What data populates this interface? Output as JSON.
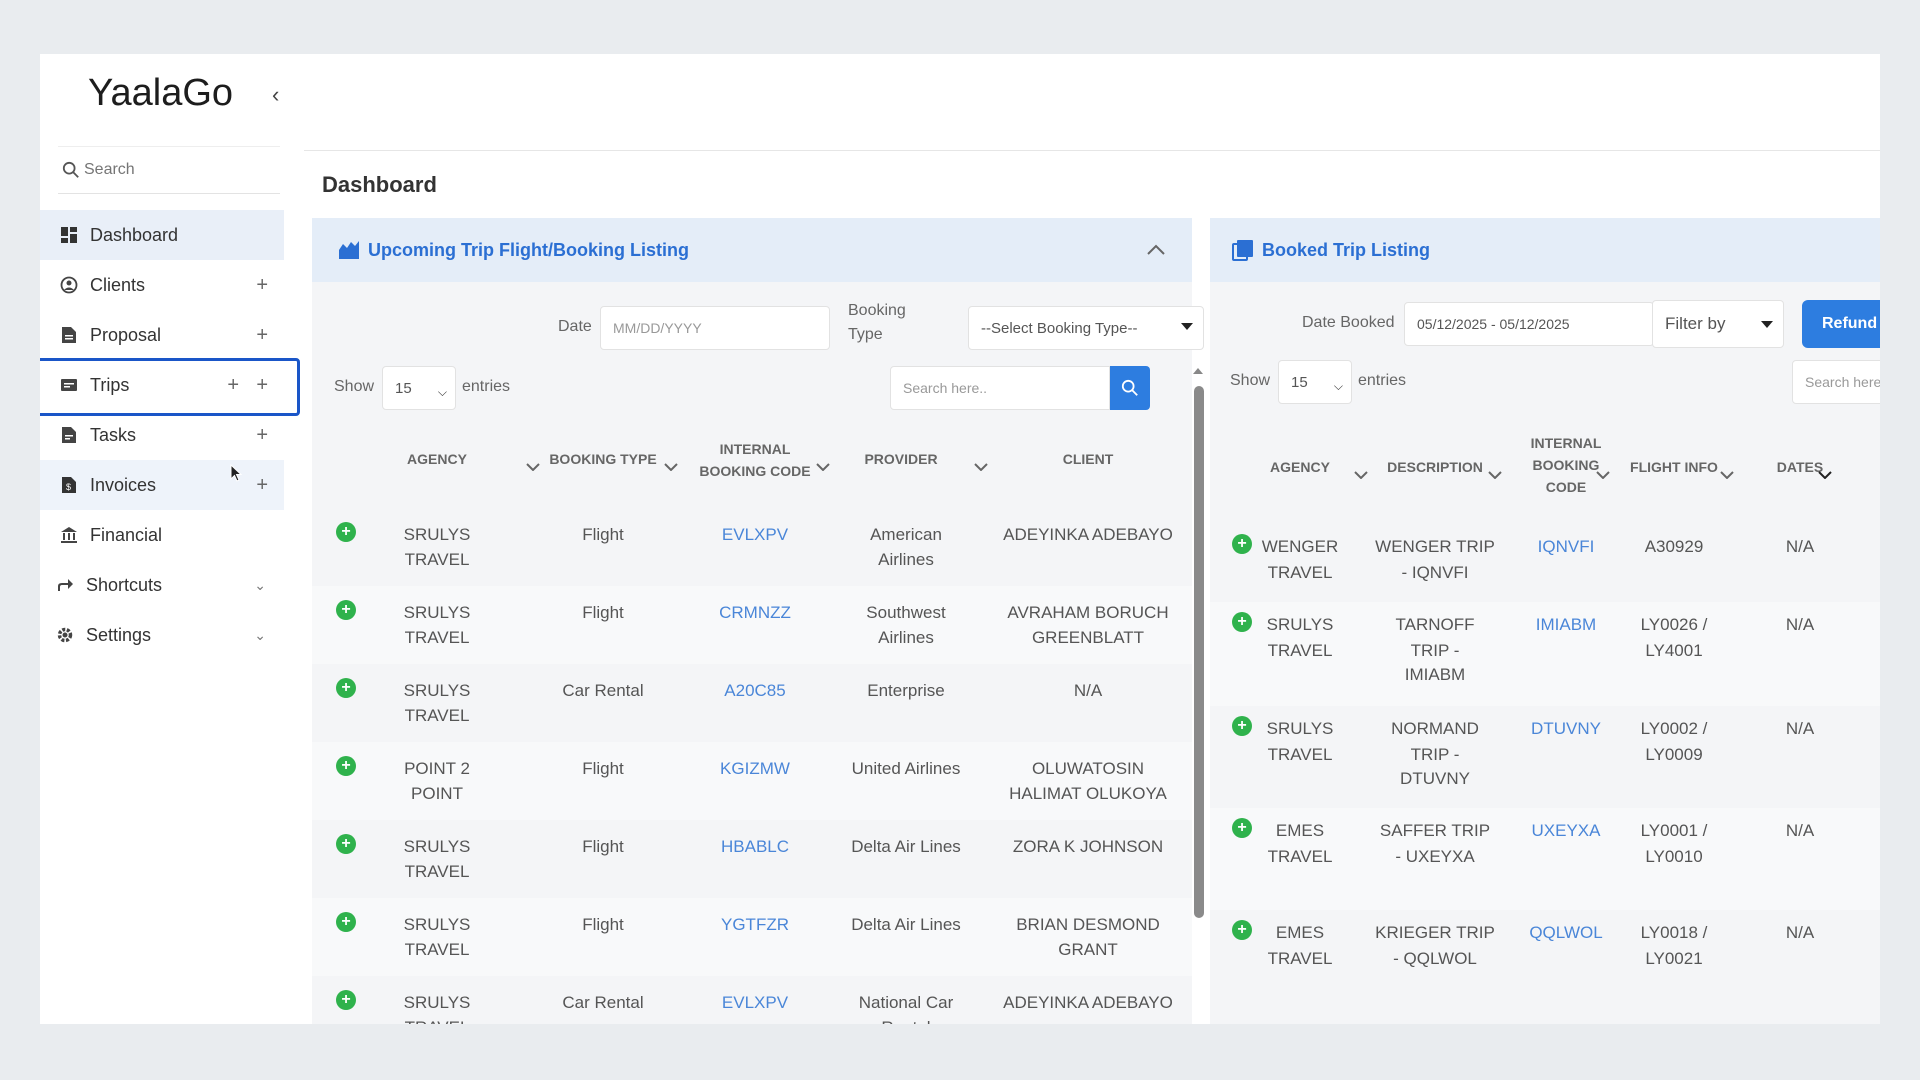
{
  "app": {
    "logo": "YaalaGo"
  },
  "sidebar": {
    "search_placeholder": "Search",
    "items": [
      {
        "label": "Dashboard",
        "icon": "dashboard-icon"
      },
      {
        "label": "Clients",
        "icon": "clients-icon"
      },
      {
        "label": "Proposal",
        "icon": "proposal-icon"
      },
      {
        "label": "Trips",
        "icon": "trips-icon"
      },
      {
        "label": "Tasks",
        "icon": "tasks-icon"
      },
      {
        "label": "Invoices",
        "icon": "invoices-icon"
      },
      {
        "label": "Financial",
        "icon": "financial-icon"
      },
      {
        "label": "Shortcuts",
        "icon": "shortcuts-icon"
      },
      {
        "label": "Settings",
        "icon": "settings-icon"
      }
    ]
  },
  "page": {
    "title": "Dashboard"
  },
  "upcoming": {
    "title": "Upcoming Trip Flight/Booking Listing",
    "date_label": "Date",
    "date_placeholder": "MM/DD/YYYY",
    "booking_type_label_1": "Booking",
    "booking_type_label_2": "Type",
    "booking_type_value": "--Select Booking Type--",
    "show_label": "Show",
    "entries_value": "15",
    "entries_label": "entries",
    "search_placeholder": "Search here..",
    "columns": [
      "AGENCY",
      "BOOKING TYPE",
      "INTERNAL BOOKING CODE",
      "PROVIDER",
      "CLIENT"
    ],
    "col_internal_1": "INTERNAL",
    "col_internal_2": "BOOKING CODE",
    "rows": [
      {
        "agency_1": "SRULYS",
        "agency_2": "TRAVEL",
        "type": "Flight",
        "code": "EVLXPV",
        "provider_1": "American",
        "provider_2": "Airlines",
        "client_1": "ADEYINKA ADEBAYO",
        "client_2": ""
      },
      {
        "agency_1": "SRULYS",
        "agency_2": "TRAVEL",
        "type": "Flight",
        "code": "CRMNZZ",
        "provider_1": "Southwest",
        "provider_2": "Airlines",
        "client_1": "AVRAHAM BORUCH",
        "client_2": "GREENBLATT"
      },
      {
        "agency_1": "SRULYS",
        "agency_2": "TRAVEL",
        "type": "Car Rental",
        "code": "A20C85",
        "provider_1": "Enterprise",
        "provider_2": "",
        "client_1": "N/A",
        "client_2": ""
      },
      {
        "agency_1": "POINT 2",
        "agency_2": "POINT",
        "type": "Flight",
        "code": "KGIZMW",
        "provider_1": "United Airlines",
        "provider_2": "",
        "client_1": "OLUWATOSIN",
        "client_2": "HALIMAT OLUKOYA"
      },
      {
        "agency_1": "SRULYS",
        "agency_2": "TRAVEL",
        "type": "Flight",
        "code": "HBABLC",
        "provider_1": "Delta Air Lines",
        "provider_2": "",
        "client_1": "ZORA K JOHNSON",
        "client_2": ""
      },
      {
        "agency_1": "SRULYS",
        "agency_2": "TRAVEL",
        "type": "Flight",
        "code": "YGTFZR",
        "provider_1": "Delta Air Lines",
        "provider_2": "",
        "client_1": "BRIAN DESMOND",
        "client_2": "GRANT"
      },
      {
        "agency_1": "SRULYS",
        "agency_2": "TRAVEL",
        "type": "Car Rental",
        "code": "EVLXPV",
        "provider_1": "National Car",
        "provider_2": "Rental",
        "client_1": "ADEYINKA ADEBAYO",
        "client_2": ""
      }
    ]
  },
  "booked": {
    "title": "Booked Trip Listing",
    "date_booked_label": "Date Booked",
    "date_booked_value": "05/12/2025 - 05/12/2025",
    "filter_label": "Filter by",
    "refund_label": "Refund",
    "show_label": "Show",
    "entries_value": "15",
    "entries_label": "entries",
    "search_placeholder": "Search here",
    "columns": [
      "AGENCY",
      "DESCRIPTION",
      "INTERNAL BOOKING CODE",
      "FLIGHT INFO",
      "DATES"
    ],
    "col_internal_1": "INTERNAL",
    "col_internal_2": "BOOKING",
    "col_internal_3": "CODE",
    "rows": [
      {
        "agency_1": "WENGER",
        "agency_2": "TRAVEL",
        "desc_1": "WENGER TRIP",
        "desc_2": "- IQNVFI",
        "desc_3": "",
        "code": "IQNVFI",
        "flight_1": "A30929",
        "flight_2": "",
        "dates": "N/A"
      },
      {
        "agency_1": "SRULYS",
        "agency_2": "TRAVEL",
        "desc_1": "TARNOFF",
        "desc_2": "TRIP -",
        "desc_3": "IMIABM",
        "code": "IMIABM",
        "flight_1": "LY0026 /",
        "flight_2": "LY4001",
        "dates": "N/A"
      },
      {
        "agency_1": "SRULYS",
        "agency_2": "TRAVEL",
        "desc_1": "NORMAND",
        "desc_2": "TRIP -",
        "desc_3": "DTUVNY",
        "code": "DTUVNY",
        "flight_1": "LY0002 /",
        "flight_2": "LY0009",
        "dates": "N/A"
      },
      {
        "agency_1": "EMES",
        "agency_2": "TRAVEL",
        "desc_1": "SAFFER TRIP",
        "desc_2": "- UXEYXA",
        "desc_3": "",
        "code": "UXEYXA",
        "flight_1": "LY0001 /",
        "flight_2": "LY0010",
        "dates": "N/A"
      },
      {
        "agency_1": "EMES",
        "agency_2": "TRAVEL",
        "desc_1": "KRIEGER TRIP",
        "desc_2": "- QQLWOL",
        "desc_3": "",
        "code": "QQLWOL",
        "flight_1": "LY0018 /",
        "flight_2": "LY0021",
        "dates": "N/A"
      }
    ]
  },
  "colors": {
    "accent": "#2d7de0",
    "link": "#4a86d8",
    "status": "#2fb24c",
    "highlight": "#1a56c8"
  }
}
